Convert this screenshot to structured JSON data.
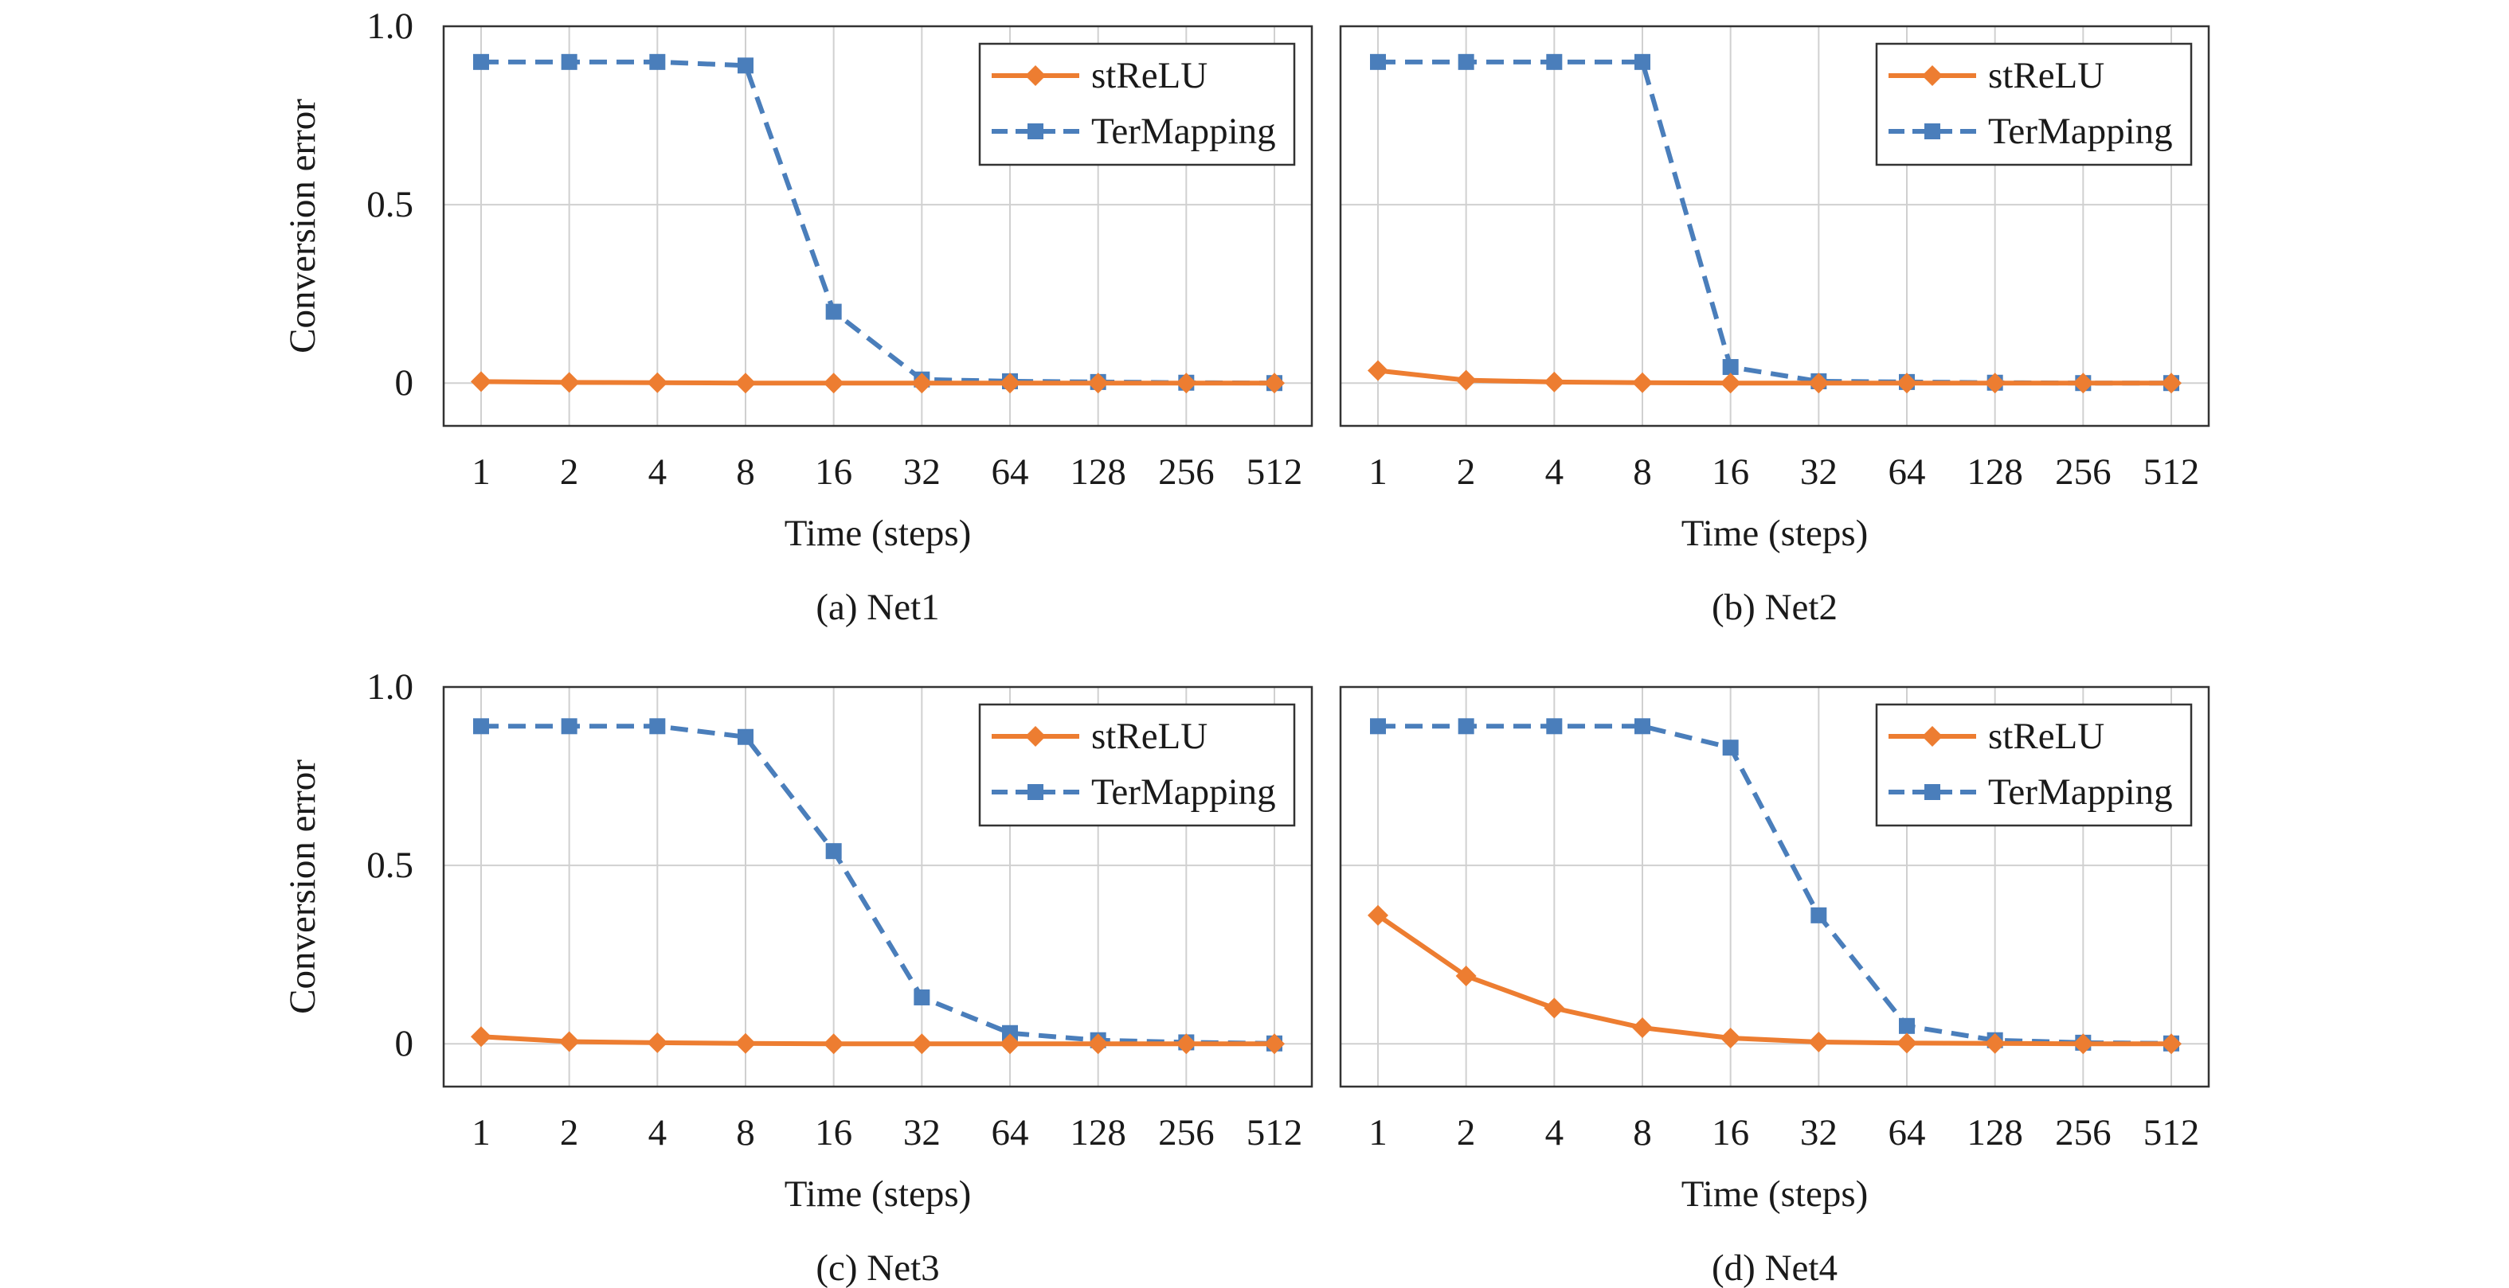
{
  "colors": {
    "strelu": "#ED7D31",
    "termapping": "#4A7EBB",
    "grid": "#d0d0d0",
    "frame": "#333333"
  },
  "chart_data": [
    {
      "type": "line",
      "caption": "(a) Net1",
      "xlabel": "Time (steps)",
      "ylabel": "Conversion error",
      "categories": [
        "1",
        "2",
        "4",
        "8",
        "16",
        "32",
        "64",
        "128",
        "256",
        "512"
      ],
      "ylim": [
        -0.12,
        1.0
      ],
      "yticks": [
        "1.0",
        "0.5",
        "0"
      ],
      "ytick_values": [
        1.0,
        0.5,
        0
      ],
      "grid": true,
      "legend": "top-right",
      "series": [
        {
          "name": "stReLU",
          "marker": "diamond",
          "style": "solid",
          "values": [
            0.004,
            0.002,
            0.001,
            0.0,
            0.0,
            0.0,
            0.0,
            0.0,
            0.0,
            0.0
          ]
        },
        {
          "name": "TerMapping",
          "marker": "square",
          "style": "dashed",
          "values": [
            0.9,
            0.9,
            0.9,
            0.89,
            0.2,
            0.01,
            0.005,
            0.003,
            0.001,
            0.0
          ]
        }
      ]
    },
    {
      "type": "line",
      "caption": "(b) Net2",
      "xlabel": "Time (steps)",
      "ylabel": "",
      "categories": [
        "1",
        "2",
        "4",
        "8",
        "16",
        "32",
        "64",
        "128",
        "256",
        "512"
      ],
      "ylim": [
        -0.12,
        1.0
      ],
      "yticks": [],
      "ytick_values": [
        1.0,
        0.5,
        0
      ],
      "grid": true,
      "legend": "top-right",
      "series": [
        {
          "name": "stReLU",
          "marker": "diamond",
          "style": "solid",
          "values": [
            0.035,
            0.008,
            0.003,
            0.001,
            0.0,
            0.0,
            0.0,
            0.0,
            0.0,
            0.0
          ]
        },
        {
          "name": "TerMapping",
          "marker": "square",
          "style": "dashed",
          "values": [
            0.9,
            0.9,
            0.9,
            0.9,
            0.045,
            0.005,
            0.003,
            0.001,
            0.0,
            0.0
          ]
        }
      ]
    },
    {
      "type": "line",
      "caption": "(c) Net3",
      "xlabel": "Time (steps)",
      "ylabel": "Conversion error",
      "categories": [
        "1",
        "2",
        "4",
        "8",
        "16",
        "32",
        "64",
        "128",
        "256",
        "512"
      ],
      "ylim": [
        -0.12,
        1.0
      ],
      "yticks": [
        "1.0",
        "0.5",
        "0"
      ],
      "ytick_values": [
        1.0,
        0.5,
        0
      ],
      "grid": true,
      "legend": "top-right",
      "series": [
        {
          "name": "stReLU",
          "marker": "diamond",
          "style": "solid",
          "values": [
            0.02,
            0.006,
            0.003,
            0.001,
            0.0,
            0.0,
            0.0,
            0.0,
            0.0,
            0.0
          ]
        },
        {
          "name": "TerMapping",
          "marker": "square",
          "style": "dashed",
          "values": [
            0.89,
            0.89,
            0.89,
            0.86,
            0.54,
            0.13,
            0.03,
            0.01,
            0.004,
            0.001
          ]
        }
      ]
    },
    {
      "type": "line",
      "caption": "(d) Net4",
      "xlabel": "Time (steps)",
      "ylabel": "",
      "categories": [
        "1",
        "2",
        "4",
        "8",
        "16",
        "32",
        "64",
        "128",
        "256",
        "512"
      ],
      "ylim": [
        -0.12,
        1.0
      ],
      "yticks": [],
      "ytick_values": [
        1.0,
        0.5,
        0
      ],
      "grid": true,
      "legend": "top-right",
      "series": [
        {
          "name": "stReLU",
          "marker": "diamond",
          "style": "solid",
          "values": [
            0.36,
            0.19,
            0.1,
            0.045,
            0.016,
            0.005,
            0.002,
            0.001,
            0.0,
            0.0
          ]
        },
        {
          "name": "TerMapping",
          "marker": "square",
          "style": "dashed",
          "values": [
            0.89,
            0.89,
            0.89,
            0.89,
            0.83,
            0.36,
            0.05,
            0.01,
            0.003,
            0.001
          ]
        }
      ]
    }
  ]
}
